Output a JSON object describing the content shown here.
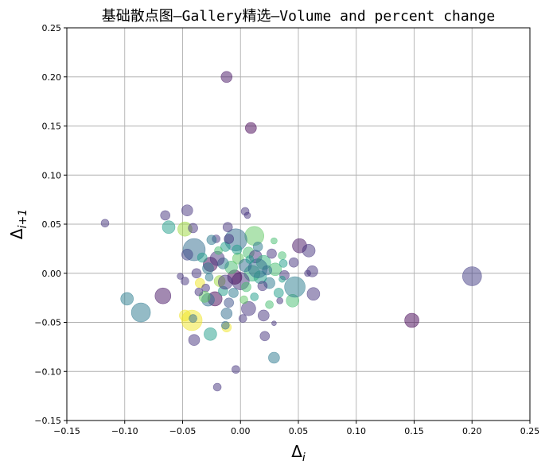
{
  "chart_data": {
    "type": "scatter",
    "title": "基础散点图—Gallery精选—Volume and percent change",
    "xlabel": "Δ",
    "xlabel_sub": "i",
    "ylabel": "Δ",
    "ylabel_sub": "i+1",
    "xlim": [
      -0.15,
      0.25
    ],
    "ylim": [
      -0.15,
      0.25
    ],
    "xticks": [
      "−0.15",
      "−0.10",
      "−0.05",
      "0.00",
      "0.05",
      "0.10",
      "0.15",
      "0.20",
      "0.25"
    ],
    "yticks": [
      "−0.15",
      "−0.10",
      "−0.05",
      "0.00",
      "0.05",
      "0.10",
      "0.15",
      "0.20",
      "0.25"
    ],
    "xtick_values": [
      -0.15,
      -0.1,
      -0.05,
      0.0,
      0.05,
      0.1,
      0.15,
      0.2,
      0.25
    ],
    "ytick_values": [
      -0.15,
      -0.1,
      -0.05,
      0.0,
      0.05,
      0.1,
      0.15,
      0.2,
      0.25
    ],
    "grid": true,
    "alpha": 0.5,
    "colormap": "viridis",
    "points": [
      {
        "x": -0.012,
        "y": 0.2,
        "s": 7,
        "c": 0.05
      },
      {
        "x": 0.009,
        "y": 0.148,
        "s": 7,
        "c": 0.0
      },
      {
        "x": -0.117,
        "y": 0.051,
        "s": 5,
        "c": 0.15
      },
      {
        "x": 0.2,
        "y": -0.003,
        "s": 12,
        "c": 0.18
      },
      {
        "x": 0.148,
        "y": -0.048,
        "s": 9,
        "c": 0.0
      },
      {
        "x": -0.086,
        "y": -0.04,
        "s": 12,
        "c": 0.4
      },
      {
        "x": -0.098,
        "y": -0.026,
        "s": 8,
        "c": 0.42
      },
      {
        "x": -0.065,
        "y": 0.059,
        "s": 6,
        "c": 0.15
      },
      {
        "x": -0.062,
        "y": 0.047,
        "s": 8,
        "c": 0.55
      },
      {
        "x": -0.067,
        "y": -0.023,
        "s": 10,
        "c": 0.05
      },
      {
        "x": -0.046,
        "y": 0.064,
        "s": 7,
        "c": 0.15
      },
      {
        "x": -0.048,
        "y": 0.045,
        "s": 9,
        "c": 0.85
      },
      {
        "x": -0.041,
        "y": 0.046,
        "s": 6,
        "c": 0.15
      },
      {
        "x": -0.04,
        "y": 0.024,
        "s": 14,
        "c": 0.35
      },
      {
        "x": -0.046,
        "y": 0.019,
        "s": 7,
        "c": 0.2
      },
      {
        "x": -0.042,
        "y": -0.048,
        "s": 13,
        "c": 0.98
      },
      {
        "x": -0.048,
        "y": -0.043,
        "s": 7,
        "c": 0.98
      },
      {
        "x": -0.04,
        "y": -0.068,
        "s": 7,
        "c": 0.15
      },
      {
        "x": -0.041,
        "y": -0.046,
        "s": 5,
        "c": 0.35
      },
      {
        "x": -0.026,
        "y": -0.062,
        "s": 8,
        "c": 0.55
      },
      {
        "x": -0.012,
        "y": -0.055,
        "s": 6,
        "c": 0.98
      },
      {
        "x": -0.013,
        "y": -0.053,
        "s": 5,
        "c": 0.35
      },
      {
        "x": -0.02,
        "y": -0.116,
        "s": 5,
        "c": 0.15
      },
      {
        "x": -0.004,
        "y": -0.098,
        "s": 5,
        "c": 0.15
      },
      {
        "x": 0.029,
        "y": -0.086,
        "s": 7,
        "c": 0.4
      },
      {
        "x": 0.021,
        "y": -0.064,
        "s": 6,
        "c": 0.15
      },
      {
        "x": 0.029,
        "y": -0.051,
        "s": 3,
        "c": 0.15
      },
      {
        "x": 0.045,
        "y": -0.028,
        "s": 8,
        "c": 0.7
      },
      {
        "x": 0.047,
        "y": -0.014,
        "s": 13,
        "c": 0.42
      },
      {
        "x": 0.063,
        "y": -0.021,
        "s": 8,
        "c": 0.15
      },
      {
        "x": 0.062,
        "y": 0.002,
        "s": 7,
        "c": 0.15
      },
      {
        "x": 0.058,
        "y": 0.0,
        "s": 4,
        "c": 0.15
      },
      {
        "x": 0.051,
        "y": 0.028,
        "s": 9,
        "c": 0.05
      },
      {
        "x": 0.059,
        "y": 0.023,
        "s": 8,
        "c": 0.15
      },
      {
        "x": 0.046,
        "y": 0.011,
        "s": 6,
        "c": 0.15
      },
      {
        "x": 0.036,
        "y": 0.018,
        "s": 5,
        "c": 0.7
      },
      {
        "x": 0.029,
        "y": 0.033,
        "s": 4,
        "c": 0.7
      },
      {
        "x": 0.012,
        "y": 0.038,
        "s": 12,
        "c": 0.75
      },
      {
        "x": -0.004,
        "y": 0.034,
        "s": 14,
        "c": 0.35
      },
      {
        "x": 0.004,
        "y": 0.063,
        "s": 5,
        "c": 0.15
      },
      {
        "x": 0.006,
        "y": 0.059,
        "s": 4,
        "c": 0.15
      },
      {
        "x": -0.011,
        "y": 0.047,
        "s": 6,
        "c": 0.15
      },
      {
        "x": -0.021,
        "y": 0.035,
        "s": 5,
        "c": 0.15
      },
      {
        "x": -0.025,
        "y": 0.034,
        "s": 6,
        "c": 0.4
      },
      {
        "x": -0.013,
        "y": 0.027,
        "s": 6,
        "c": 0.55
      },
      {
        "x": 0.007,
        "y": 0.021,
        "s": 7,
        "c": 0.7
      },
      {
        "x": 0.013,
        "y": 0.017,
        "s": 8,
        "c": 0.15
      },
      {
        "x": 0.02,
        "y": 0.011,
        "s": 9,
        "c": 0.65
      },
      {
        "x": -0.026,
        "y": 0.009,
        "s": 9,
        "c": 0.0
      },
      {
        "x": -0.028,
        "y": 0.005,
        "s": 7,
        "c": 0.4
      },
      {
        "x": -0.038,
        "y": 0.0,
        "s": 6,
        "c": 0.15
      },
      {
        "x": -0.052,
        "y": -0.003,
        "s": 4,
        "c": 0.15
      },
      {
        "x": -0.048,
        "y": -0.008,
        "s": 5,
        "c": 0.15
      },
      {
        "x": -0.035,
        "y": -0.01,
        "s": 6,
        "c": 0.98
      },
      {
        "x": -0.03,
        "y": -0.015,
        "s": 5,
        "c": 0.15
      },
      {
        "x": -0.022,
        "y": -0.026,
        "s": 9,
        "c": 0.0
      },
      {
        "x": -0.028,
        "y": -0.027,
        "s": 8,
        "c": 0.35
      },
      {
        "x": -0.031,
        "y": -0.024,
        "s": 7,
        "c": 0.75
      },
      {
        "x": -0.015,
        "y": -0.018,
        "s": 6,
        "c": 0.55
      },
      {
        "x": -0.01,
        "y": -0.03,
        "s": 6,
        "c": 0.25
      },
      {
        "x": -0.012,
        "y": -0.041,
        "s": 7,
        "c": 0.35
      },
      {
        "x": 0.002,
        "y": -0.046,
        "s": 5,
        "c": 0.15
      },
      {
        "x": 0.007,
        "y": -0.036,
        "s": 9,
        "c": 0.15
      },
      {
        "x": 0.02,
        "y": -0.043,
        "s": 7,
        "c": 0.15
      },
      {
        "x": 0.025,
        "y": -0.032,
        "s": 5,
        "c": 0.7
      },
      {
        "x": 0.034,
        "y": -0.028,
        "s": 4,
        "c": 0.15
      },
      {
        "x": 0.033,
        "y": -0.02,
        "s": 6,
        "c": 0.55
      },
      {
        "x": 0.025,
        "y": -0.01,
        "s": 7,
        "c": 0.4
      },
      {
        "x": 0.017,
        "y": -0.004,
        "s": 8,
        "c": 0.55
      },
      {
        "x": 0.01,
        "y": 0.0,
        "s": 10,
        "c": 0.65
      },
      {
        "x": 0.0,
        "y": -0.008,
        "s": 11,
        "c": 0.15
      },
      {
        "x": -0.005,
        "y": -0.004,
        "s": 9,
        "c": 0.0
      },
      {
        "x": -0.008,
        "y": 0.006,
        "s": 8,
        "c": 0.7
      },
      {
        "x": -0.015,
        "y": 0.01,
        "s": 7,
        "c": 0.4
      },
      {
        "x": -0.02,
        "y": 0.015,
        "s": 9,
        "c": 0.15
      },
      {
        "x": -0.018,
        "y": -0.008,
        "s": 7,
        "c": 0.85
      },
      {
        "x": -0.002,
        "y": 0.015,
        "s": 7,
        "c": 0.75
      },
      {
        "x": 0.004,
        "y": 0.008,
        "s": 8,
        "c": 0.35
      },
      {
        "x": 0.015,
        "y": 0.005,
        "s": 12,
        "c": 0.35
      },
      {
        "x": 0.03,
        "y": 0.004,
        "s": 8,
        "c": 0.7
      },
      {
        "x": 0.038,
        "y": -0.002,
        "s": 6,
        "c": 0.15
      },
      {
        "x": 0.037,
        "y": 0.01,
        "s": 5,
        "c": 0.55
      },
      {
        "x": 0.027,
        "y": 0.02,
        "s": 6,
        "c": 0.15
      },
      {
        "x": 0.015,
        "y": 0.027,
        "s": 6,
        "c": 0.4
      },
      {
        "x": -0.003,
        "y": 0.024,
        "s": 6,
        "c": 0.55
      },
      {
        "x": -0.01,
        "y": 0.035,
        "s": 6,
        "c": 0.15
      },
      {
        "x": -0.019,
        "y": 0.023,
        "s": 5,
        "c": 0.7
      },
      {
        "x": -0.033,
        "y": 0.016,
        "s": 6,
        "c": 0.55
      },
      {
        "x": -0.036,
        "y": -0.019,
        "s": 5,
        "c": 0.15
      },
      {
        "x": -0.013,
        "y": -0.009,
        "s": 9,
        "c": 0.15
      },
      {
        "x": 0.005,
        "y": -0.014,
        "s": 6,
        "c": 0.7
      },
      {
        "x": 0.012,
        "y": -0.024,
        "s": 5,
        "c": 0.55
      },
      {
        "x": 0.019,
        "y": -0.013,
        "s": 6,
        "c": 0.15
      },
      {
        "x": 0.023,
        "y": 0.003,
        "s": 6,
        "c": 0.35
      },
      {
        "x": 0.008,
        "y": 0.014,
        "s": 5,
        "c": 0.55
      },
      {
        "x": -0.006,
        "y": -0.02,
        "s": 6,
        "c": 0.4
      },
      {
        "x": 0.036,
        "y": -0.006,
        "s": 4,
        "c": 0.55
      },
      {
        "x": 0.003,
        "y": -0.027,
        "s": 5,
        "c": 0.75
      },
      {
        "x": -0.027,
        "y": -0.004,
        "s": 5,
        "c": 0.4
      }
    ]
  }
}
